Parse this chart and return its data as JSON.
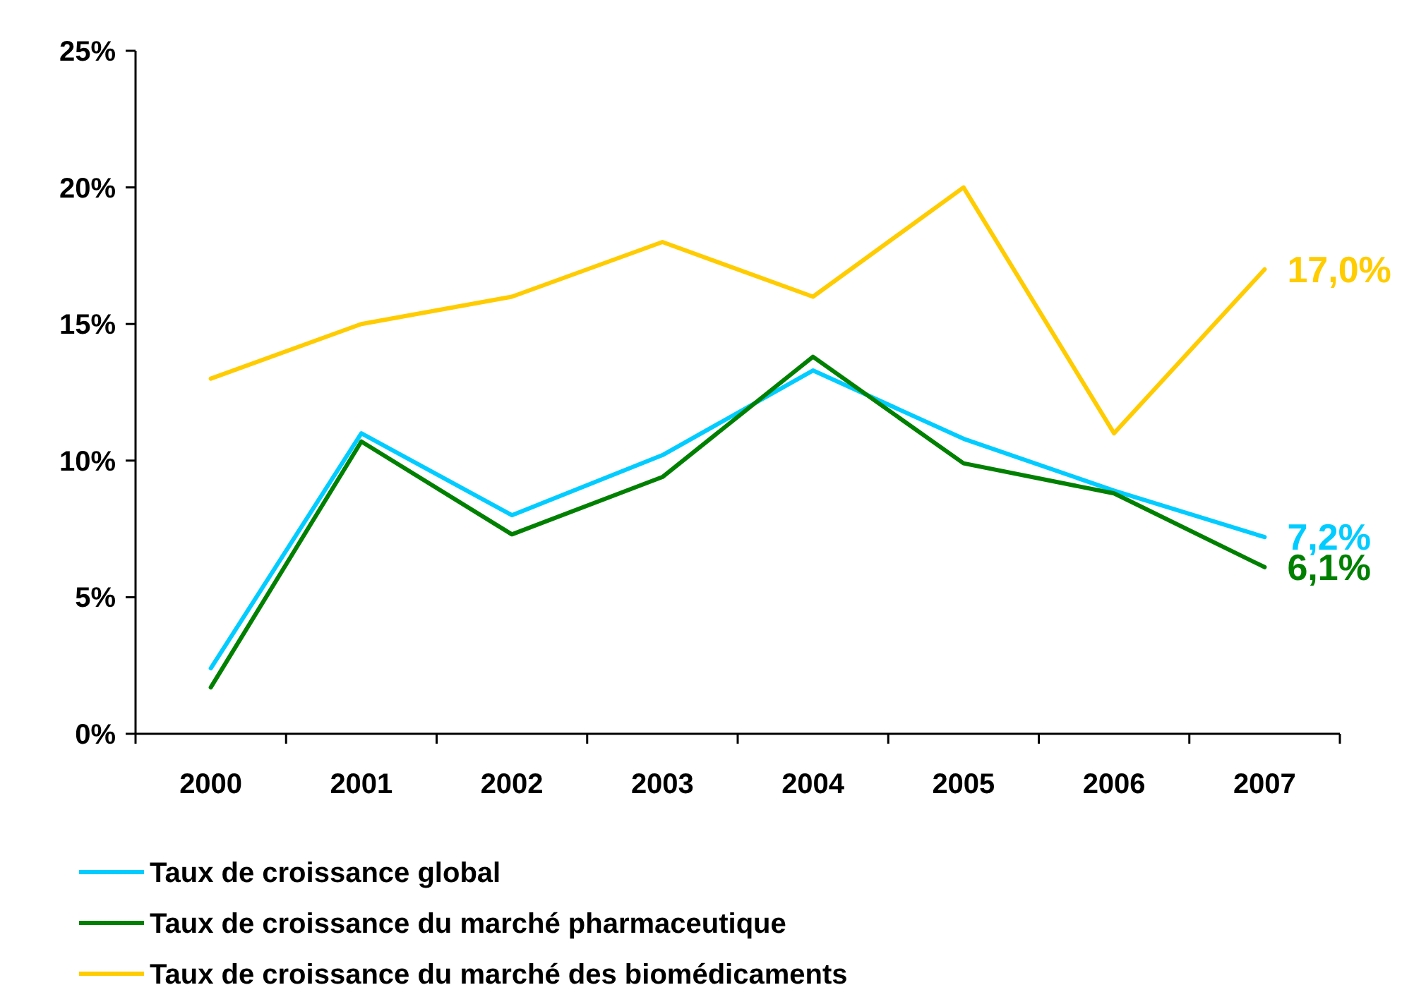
{
  "chart_data": {
    "type": "line",
    "categories": [
      "2000",
      "2001",
      "2002",
      "2003",
      "2004",
      "2005",
      "2006",
      "2007"
    ],
    "ylim": [
      0,
      25
    ],
    "yticks": [
      {
        "value": 0,
        "label": "0%"
      },
      {
        "value": 5,
        "label": "5%"
      },
      {
        "value": 10,
        "label": "10%"
      },
      {
        "value": 15,
        "label": "15%"
      },
      {
        "value": 20,
        "label": "20%"
      },
      {
        "value": 25,
        "label": "25%"
      }
    ],
    "legend": "bottom",
    "marker": "none",
    "line_style": "solid",
    "grid": false,
    "series": [
      {
        "name": "Taux de croissance global",
        "color": "#00ccff",
        "values": [
          2.4,
          11.0,
          8.0,
          10.2,
          13.3,
          10.8,
          8.9,
          7.2
        ],
        "value_labels": [
          null,
          null,
          null,
          null,
          null,
          null,
          null,
          "7,2%"
        ]
      },
      {
        "name": "Taux de croissance du marché pharmaceutique",
        "color": "#008000",
        "values": [
          1.7,
          10.7,
          7.3,
          9.4,
          13.8,
          9.9,
          8.8,
          6.1
        ],
        "value_labels": [
          null,
          null,
          null,
          null,
          null,
          null,
          null,
          "6,1%"
        ]
      },
      {
        "name": "Taux de croissance du marché des biomédicaments",
        "color": "#ffcc00",
        "values": [
          13,
          15,
          16,
          18,
          16,
          20,
          11,
          17
        ],
        "value_labels": [
          null,
          null,
          null,
          null,
          null,
          null,
          null,
          "17,0%"
        ]
      }
    ]
  }
}
